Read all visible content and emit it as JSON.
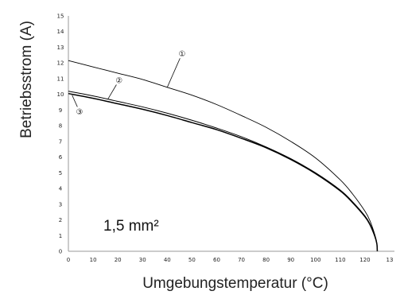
{
  "chart_data": {
    "type": "line",
    "xlabel": "Umgebungstemperatur (°C)",
    "ylabel": "Betriebsstrom (A)",
    "annotation": "1,5 mm²",
    "xlim": [
      0,
      130
    ],
    "ylim": [
      0,
      15
    ],
    "x_ticks": [
      "0",
      "10",
      "20",
      "30",
      "40",
      "50",
      "60",
      "70",
      "80",
      "90",
      "100",
      "110",
      "120",
      "13"
    ],
    "y_ticks": [
      "0",
      "1",
      "2",
      "3",
      "4",
      "5",
      "6",
      "7",
      "8",
      "9",
      "10",
      "11",
      "12",
      "13",
      "14",
      "15"
    ],
    "grid": false,
    "series": [
      {
        "name": "①",
        "color": "#000000",
        "x": [
          0,
          10,
          20,
          30,
          40,
          50,
          60,
          70,
          80,
          90,
          100,
          110,
          115,
          120,
          122,
          124,
          124.8,
          125
        ],
        "y": [
          12.15,
          11.75,
          11.35,
          10.95,
          10.45,
          9.95,
          9.35,
          8.65,
          7.9,
          7.0,
          5.95,
          4.55,
          3.65,
          2.55,
          1.95,
          1.05,
          0.5,
          0
        ]
      },
      {
        "name": "②",
        "color": "#000000",
        "x": [
          0,
          10,
          20,
          30,
          40,
          50,
          60,
          70,
          80,
          90,
          100,
          110,
          115,
          120,
          122,
          124,
          124.8,
          125
        ],
        "y": [
          10.2,
          9.9,
          9.55,
          9.2,
          8.8,
          8.35,
          7.85,
          7.3,
          6.65,
          5.9,
          5.0,
          3.9,
          3.15,
          2.25,
          1.75,
          1.0,
          0.5,
          0
        ]
      },
      {
        "name": "③",
        "color": "#000000",
        "x": [
          0,
          10,
          20,
          30,
          40,
          50,
          60,
          70,
          80,
          90,
          100,
          110,
          115,
          120,
          122,
          124,
          124.8,
          125
        ],
        "y": [
          10.05,
          9.75,
          9.4,
          9.05,
          8.65,
          8.2,
          7.75,
          7.2,
          6.6,
          5.85,
          4.95,
          3.85,
          3.1,
          2.2,
          1.7,
          0.95,
          0.48,
          0
        ]
      }
    ],
    "markers": [
      {
        "label": "①",
        "x": 46,
        "y": 12.6,
        "series_point": [
          40,
          10.45
        ]
      },
      {
        "label": "②",
        "x": 20.5,
        "y": 10.9,
        "series_point": [
          16,
          9.7
        ]
      },
      {
        "label": "③",
        "x": 4.5,
        "y": 8.9,
        "series_point": [
          1.5,
          9.95
        ]
      }
    ]
  }
}
